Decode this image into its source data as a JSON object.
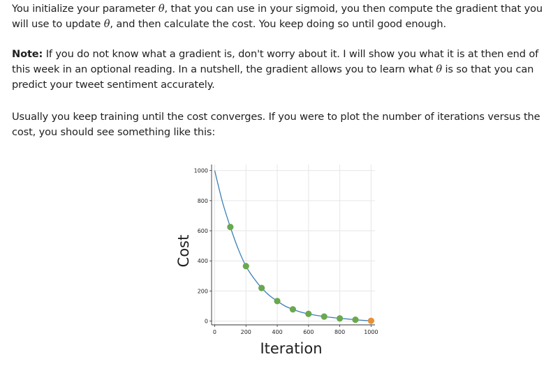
{
  "paragraphs": {
    "p1": {
      "part1": "You initialize your parameter ",
      "theta1": "θ",
      "part2": ", that you can use in your sigmoid, you then compute the gradient that you will use to update ",
      "theta2": "θ",
      "part3": ", and then calculate the cost. You keep doing so until good enough."
    },
    "p2": {
      "note_label": "Note:",
      "part1": " If you do not know what a gradient is, don't worry about it. I will show you what it is at then end of this week in an optional reading. In a nutshell, the gradient allows you to learn what ",
      "theta": "θ",
      "part2": " is so that you can predict your tweet sentiment accurately."
    },
    "p3": "Usually you keep training until the cost converges. If you were to plot the number of iterations versus the cost, you should see something like this:"
  },
  "chart_data": {
    "type": "scatter",
    "xlabel": "Iteration",
    "ylabel": "Cost",
    "xlim": [
      -20,
      1025
    ],
    "ylim": [
      -25,
      1040
    ],
    "xticks": [
      0,
      200,
      400,
      600,
      800,
      1000
    ],
    "yticks": [
      0,
      200,
      400,
      600,
      800,
      1000
    ],
    "grid": true,
    "curve": {
      "x": [
        0,
        50,
        100,
        150,
        200,
        250,
        300,
        350,
        400,
        450,
        500,
        550,
        600,
        650,
        700,
        750,
        800,
        850,
        900,
        950,
        1000
      ],
      "y": [
        1000,
        790,
        625,
        480,
        365,
        285,
        220,
        170,
        133,
        100,
        78,
        60,
        48,
        38,
        30,
        24,
        18,
        14,
        9,
        5,
        2
      ],
      "color": "#3b7fb5"
    },
    "points": {
      "x": [
        100,
        200,
        300,
        400,
        500,
        600,
        700,
        800,
        900
      ],
      "y": [
        625,
        365,
        220,
        133,
        78,
        48,
        30,
        18,
        9
      ],
      "color": "#6aa84f"
    },
    "final_point": {
      "x": 1000,
      "y": 2,
      "color": "#e69138"
    }
  }
}
